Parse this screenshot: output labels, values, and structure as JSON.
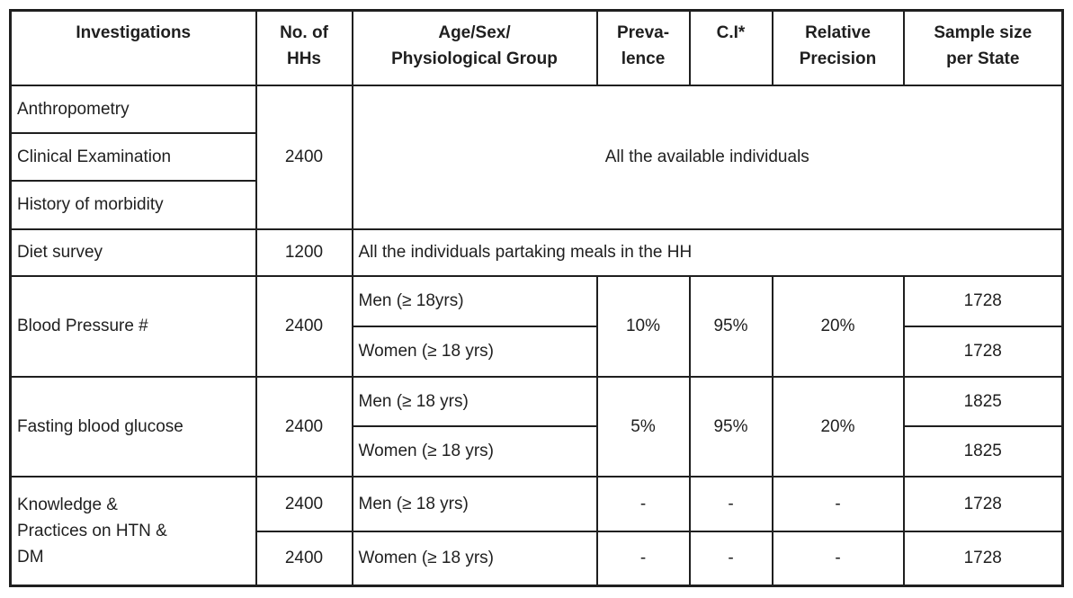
{
  "page": {
    "background_color": "#ffffff",
    "text_color": "#1f1f1f",
    "border_color": "#1f1f1f"
  },
  "table": {
    "header": {
      "investigations": "Investigations",
      "no_of_hhs": "No. of\nHHs",
      "age_sex_group": "Age/Sex/\nPhysiological Group",
      "prevalence": "Preva-\nlence",
      "ci": "C.I*",
      "relative_precision": "Relative\nPrecision",
      "sample_size_per_state": "Sample size\nper State"
    },
    "sections": [
      {
        "rows": [
          "Anthropometry",
          "Clinical Examination",
          "History of morbidity"
        ],
        "no_of_hhs": "2400",
        "coverage": "All the available individuals"
      },
      {
        "investigation": "Diet survey",
        "no_of_hhs": "1200",
        "coverage": "All the individuals partaking meals in the HH"
      },
      {
        "investigation": "Blood Pressure #",
        "no_of_hhs": "2400",
        "groups": [
          "Men (≥ 18yrs)",
          "Women (≥ 18 yrs)"
        ],
        "prevalence": "10%",
        "ci": "95%",
        "relative_precision": "20%",
        "sample_sizes": [
          "1728",
          "1728"
        ]
      },
      {
        "investigation": "Fasting blood glucose",
        "no_of_hhs": "2400",
        "groups": [
          "Men (≥ 18 yrs)",
          "Women (≥ 18 yrs)"
        ],
        "prevalence": "5%",
        "ci": "95%",
        "relative_precision": "20%",
        "sample_sizes": [
          "1825",
          "1825"
        ]
      },
      {
        "investigation": "Knowledge &\nPractices on HTN &\nDM",
        "no_of_hhs_rows": [
          "2400",
          "2400"
        ],
        "groups": [
          "Men (≥ 18 yrs)",
          "Women (≥ 18 yrs)"
        ],
        "prevalence_rows": [
          "-",
          "-"
        ],
        "ci_rows": [
          "-",
          "-"
        ],
        "relative_precision_rows": [
          "-",
          "-"
        ],
        "sample_sizes": [
          "1728",
          "1728"
        ]
      }
    ]
  }
}
